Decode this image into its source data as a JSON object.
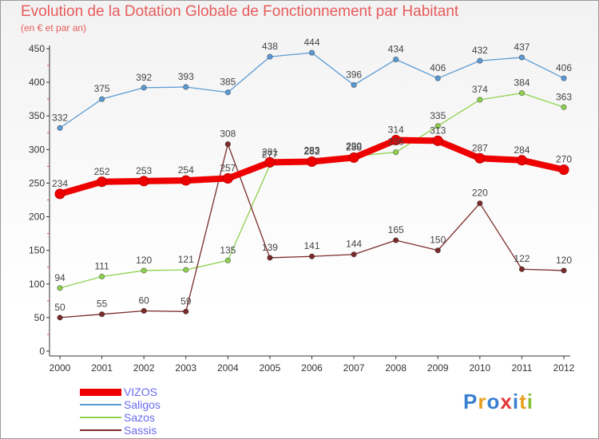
{
  "header": {
    "title": "Evolution de la Dotation Globale de Fonctionnement par Habitant",
    "subtitle": "(en € et par an)"
  },
  "logo": {
    "text": "Proxiti",
    "colors": [
      "#3a7fd0",
      "#e8a020",
      "#3a7fd0",
      "#e23838",
      "#3a7fd0",
      "#e8a020",
      "#8ac03a"
    ]
  },
  "chart_data": {
    "type": "line",
    "title": "Evolution de la Dotation Globale de Fonctionnement par Habitant",
    "subtitle": "(en € et par an)",
    "xlabel": "",
    "ylabel": "",
    "ylim": [
      0,
      450
    ],
    "yticks": [
      0,
      50,
      100,
      150,
      200,
      250,
      300,
      350,
      400,
      450
    ],
    "grid": false,
    "legend": "bottom-left",
    "categories": [
      "2000",
      "2001",
      "2002",
      "2003",
      "2004",
      "2005",
      "2006",
      "2007",
      "2008",
      "2009",
      "2010",
      "2011",
      "2012"
    ],
    "series": [
      {
        "name": "Saligos",
        "color": "#5b9bd5",
        "values": [
          332,
          375,
          392,
          393,
          385,
          438,
          444,
          396,
          434,
          406,
          432,
          437,
          406
        ]
      },
      {
        "name": "Sazos",
        "color": "#8fd14f",
        "values": [
          94,
          111,
          120,
          121,
          135,
          277,
          283,
          290,
          296,
          335,
          374,
          384,
          363
        ]
      },
      {
        "name": "Sassis",
        "color": "#7b2b2b",
        "values": [
          50,
          55,
          60,
          59,
          308,
          139,
          141,
          144,
          165,
          150,
          220,
          122,
          120
        ]
      },
      {
        "name": "VIZOS",
        "color": "#ee0000",
        "values": [
          234,
          252,
          253,
          254,
          257,
          281,
          282,
          288,
          314,
          313,
          287,
          284,
          270
        ]
      }
    ]
  }
}
